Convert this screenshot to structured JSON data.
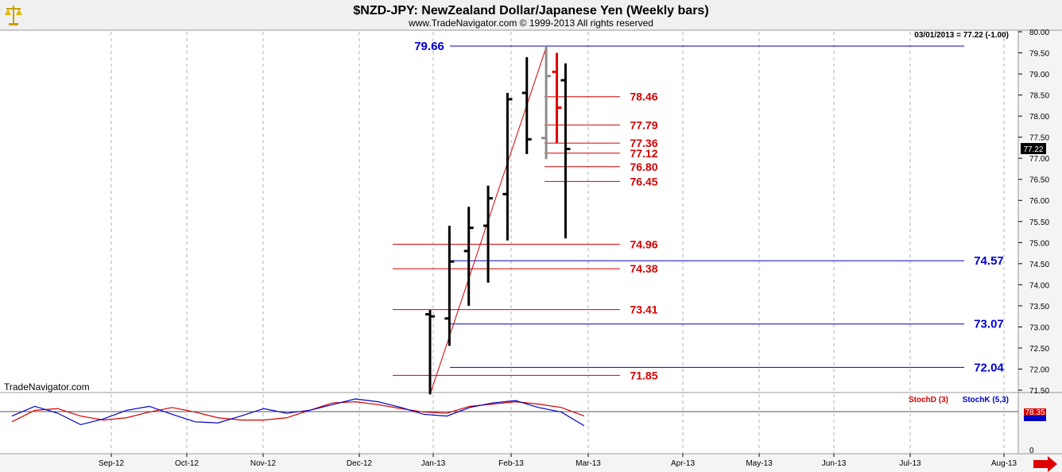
{
  "header": {
    "title": "$NZD-JPY:  NewZealand Dollar/Japanese Yen  (Weekly bars)",
    "copyright": "www.TradeNavigator.com © 1999-2013 All rights reserved",
    "last_bar_info": "03/01/2013 = 77.22 (-1.00)",
    "watermark": "TradeNavigator.com",
    "logo_icon": "scales-icon",
    "scroll_right_icon": "arrow-right-icon"
  },
  "colors": {
    "bar_up_down": "#000000",
    "bar_grey": "#8c8c8c",
    "bar_red": "#e00000",
    "fib_lines": "#d40000",
    "support_lines": "#0000c0",
    "stoch_d": "#d40000",
    "stoch_k": "#0000c0",
    "grid": "#b0b0b0"
  },
  "price_axis": {
    "ticks": [
      "80.00",
      "79.50",
      "79.00",
      "78.50",
      "78.00",
      "77.50",
      "77.00",
      "76.50",
      "76.00",
      "75.50",
      "75.00",
      "74.50",
      "74.00",
      "73.50",
      "73.00",
      "72.50",
      "72.00",
      "71.50"
    ],
    "current_price_tag": "77.22"
  },
  "indicator_axis": {
    "zero_label": "0",
    "value_tag": "78.35"
  },
  "indicator_legend": {
    "stoch_d": "StochD (3)",
    "stoch_k": "StochK (5,3)"
  },
  "chart_data": [
    {
      "type": "ohlc",
      "title": "$NZD-JPY:  NewZealand Dollar/Japanese Yen  (Weekly bars)",
      "x": [
        "Sep-12",
        "Oct-12",
        "Nov-12",
        "Dec-12",
        "Jan-13",
        "Feb-13",
        "Mar-13",
        "Apr-13",
        "May-13",
        "Jun-13",
        "Jul-13",
        "Aug-13"
      ],
      "ylim": [
        71.3,
        80.1
      ],
      "grid": true,
      "bars": [
        {
          "week": 0,
          "open": 73.3,
          "high": 73.4,
          "low": 71.4,
          "close": 73.25,
          "color": "black"
        },
        {
          "week": 1,
          "open": 73.2,
          "high": 75.4,
          "low": 72.55,
          "close": 74.55,
          "color": "black"
        },
        {
          "week": 2,
          "open": 74.8,
          "high": 75.85,
          "low": 73.5,
          "close": 75.35,
          "color": "black"
        },
        {
          "week": 3,
          "open": 75.4,
          "high": 76.35,
          "low": 74.05,
          "close": 76.05,
          "color": "black"
        },
        {
          "week": 4,
          "open": 76.15,
          "high": 78.55,
          "low": 75.05,
          "close": 78.4,
          "color": "black"
        },
        {
          "week": 5,
          "open": 78.55,
          "high": 79.4,
          "low": 77.1,
          "close": 77.45,
          "color": "black"
        },
        {
          "week": 6,
          "open": 77.48,
          "high": 79.66,
          "low": 76.98,
          "close": 78.95,
          "color": "grey"
        },
        {
          "week": 6.55,
          "open": 79.05,
          "high": 79.5,
          "low": 77.36,
          "close": 78.2,
          "color": "red"
        },
        {
          "week": 7,
          "open": 78.85,
          "high": 79.25,
          "low": 75.1,
          "close": 77.22,
          "color": "black"
        }
      ],
      "trendline": {
        "from": {
          "week": 0,
          "value": 71.4
        },
        "to": {
          "week": 6,
          "value": 79.66
        }
      },
      "fib_levels": [
        78.46,
        77.79,
        77.36,
        77.12,
        76.8,
        76.45,
        74.96,
        74.38,
        73.41,
        71.85
      ],
      "fib_labels": [
        "78.46",
        "77.79",
        "77.36",
        "77.12",
        "76.80",
        "76.45",
        "74.96",
        "74.38",
        "73.41",
        "71.85"
      ],
      "horizontal_lines": [
        79.66,
        74.57,
        73.07,
        72.04
      ],
      "horizontal_labels": [
        "79.66",
        "74.57",
        "73.07",
        "72.04"
      ]
    },
    {
      "type": "line",
      "series": [
        {
          "name": "StochD (3)",
          "values": [
            35,
            55,
            58,
            45,
            38,
            42,
            52,
            60,
            52,
            42,
            38,
            38,
            42,
            55,
            68,
            70,
            65,
            58,
            52,
            50,
            62,
            66,
            70,
            66,
            60,
            45
          ]
        },
        {
          "name": "StochK (5,3)",
          "values": [
            45,
            62,
            50,
            30,
            40,
            55,
            62,
            48,
            35,
            33,
            45,
            58,
            50,
            55,
            65,
            75,
            70,
            60,
            48,
            45,
            60,
            68,
            72,
            60,
            52,
            28
          ]
        }
      ],
      "ylim": [
        0,
        100
      ]
    }
  ]
}
